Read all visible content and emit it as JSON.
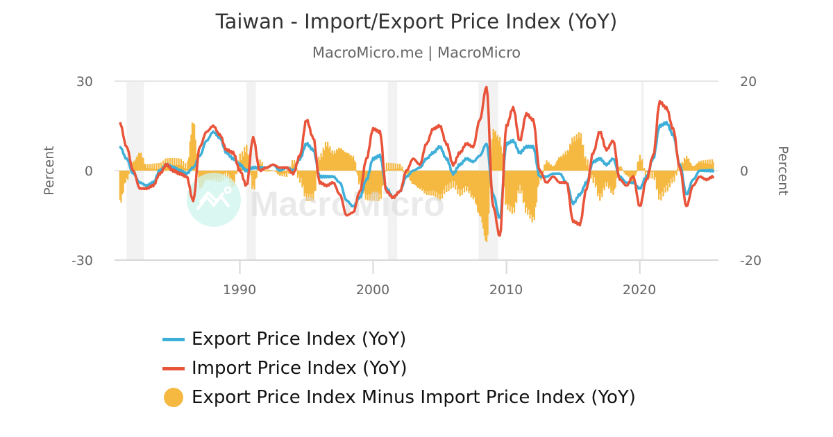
{
  "header": {
    "title": "Taiwan - Import/Export Price Index (YoY)",
    "subtitle": "MacroMicro.me | MacroMicro"
  },
  "watermark": {
    "text": "MacroMicro",
    "icon": "macromicro-logo-icon"
  },
  "axes": {
    "left": {
      "label": "Percent",
      "ticks": [
        "30",
        "0",
        "-30"
      ]
    },
    "right": {
      "label": "Percent",
      "ticks": [
        "20",
        "0",
        "-20"
      ]
    },
    "x": {
      "ticks": [
        "1990",
        "2000",
        "2010",
        "2020"
      ]
    }
  },
  "legend": [
    {
      "label": "Export Price Index (YoY)",
      "color": "#3EAFD8",
      "type": "line"
    },
    {
      "label": "Import Price Index (YoY)",
      "color": "#E8533A",
      "type": "line"
    },
    {
      "label": "Export Price Index Minus Import Price Index (YoY)",
      "color": "#F5B942",
      "type": "dot"
    }
  ],
  "colors": {
    "export": "#3EAFD8",
    "import": "#E8533A",
    "spread": "#F5B942",
    "recession": "#F2F2F2",
    "grid": "#E6E6E6"
  },
  "chart_data": {
    "type": "line",
    "title": "Taiwan - Import/Export Price Index (YoY)",
    "subtitle": "MacroMicro.me | MacroMicro",
    "xlabel": "",
    "ylabel_left": "Percent",
    "ylabel_right": "Percent",
    "ylim_left": [
      -30,
      30
    ],
    "ylim_right": [
      -20,
      20
    ],
    "xlim": [
      1980.6,
      2025.9
    ],
    "x_ticks": [
      1990,
      2000,
      2010,
      2020
    ],
    "grid": false,
    "legend_position": "bottom",
    "recessions": [
      [
        1981.5,
        1982.8
      ],
      [
        1990.5,
        1991.2
      ],
      [
        2001.1,
        2001.8
      ],
      [
        2007.9,
        2009.4
      ],
      [
        2020.1,
        2020.3
      ]
    ],
    "x": [
      1981.0,
      1981.5,
      1982.0,
      1982.5,
      1983.0,
      1983.5,
      1984.0,
      1984.5,
      1985.0,
      1985.5,
      1986.0,
      1986.5,
      1987.0,
      1987.5,
      1988.0,
      1988.5,
      1989.0,
      1989.5,
      1990.0,
      1990.5,
      1991.0,
      1991.5,
      1992.0,
      1992.5,
      1993.0,
      1993.5,
      1994.0,
      1994.5,
      1995.0,
      1995.5,
      1996.0,
      1996.5,
      1997.0,
      1997.5,
      1998.0,
      1998.5,
      1999.0,
      1999.5,
      2000.0,
      2000.5,
      2001.0,
      2001.5,
      2002.0,
      2002.5,
      2003.0,
      2003.5,
      2004.0,
      2004.5,
      2005.0,
      2005.5,
      2006.0,
      2006.5,
      2007.0,
      2007.5,
      2008.0,
      2008.5,
      2009.0,
      2009.5,
      2010.0,
      2010.5,
      2011.0,
      2011.5,
      2012.0,
      2012.5,
      2013.0,
      2013.5,
      2014.0,
      2014.5,
      2015.0,
      2015.5,
      2016.0,
      2016.5,
      2017.0,
      2017.5,
      2018.0,
      2018.5,
      2019.0,
      2019.5,
      2020.0,
      2020.5,
      2021.0,
      2021.5,
      2022.0,
      2022.5,
      2023.0,
      2023.5,
      2024.0,
      2024.5,
      2025.0,
      2025.5
    ],
    "series": [
      {
        "name": "Export Price Index (YoY)",
        "axis": "left",
        "color": "#3EAFD8",
        "values": [
          8,
          4,
          -1,
          -4,
          -5,
          -4,
          0,
          2,
          1,
          0,
          -1,
          1,
          5,
          10,
          13,
          11,
          6,
          4,
          2,
          0,
          1,
          1,
          1,
          2,
          0,
          1,
          0,
          4,
          9,
          7,
          -2,
          -2,
          -2,
          -4,
          -10,
          -12,
          -9,
          -3,
          4,
          5,
          -6,
          -9,
          -7,
          -2,
          0,
          1,
          4,
          6,
          8,
          4,
          -1,
          2,
          4,
          3,
          5,
          9,
          -8,
          -16,
          9,
          10,
          6,
          8,
          8,
          -2,
          -2,
          -1,
          -1,
          -4,
          -11,
          -8,
          -4,
          3,
          4,
          2,
          4,
          -2,
          -4,
          -4,
          -6,
          -2,
          4,
          15,
          16,
          12,
          2,
          -8,
          -3,
          0,
          0,
          0
        ]
      },
      {
        "name": "Import Price Index (YoY)",
        "axis": "left",
        "color": "#E8533A",
        "values": [
          16,
          8,
          0,
          -6,
          -6,
          -5,
          -1,
          2,
          0,
          -1,
          -2,
          -10,
          8,
          13,
          15,
          12,
          7,
          6,
          0,
          -5,
          11,
          0,
          1,
          2,
          1,
          1,
          -1,
          5,
          17,
          11,
          -4,
          -5,
          -4,
          -8,
          -15,
          -14,
          -7,
          4,
          14,
          13,
          -7,
          -9,
          -7,
          0,
          4,
          2,
          9,
          14,
          15,
          9,
          2,
          6,
          9,
          8,
          17,
          28,
          -12,
          -22,
          15,
          21,
          10,
          19,
          17,
          0,
          -4,
          -2,
          -4,
          -4,
          -17,
          -18,
          -6,
          6,
          13,
          7,
          10,
          -3,
          -5,
          -2,
          -12,
          -3,
          5,
          23,
          21,
          14,
          1,
          -12,
          -5,
          -2,
          -3,
          -2
        ]
      },
      {
        "name": "Export Price Index Minus Import Price Index (YoY)",
        "axis": "right",
        "type": "bar",
        "color": "#F5B942",
        "values": [
          -7,
          -2,
          2,
          4,
          1,
          1,
          1,
          2,
          2,
          2,
          1,
          11,
          -4,
          -2,
          -2,
          -2,
          -1,
          -3,
          3,
          5,
          -4,
          2,
          0,
          0,
          -1,
          -1,
          2,
          -2,
          -6,
          -6,
          3,
          6,
          4,
          5,
          4,
          3,
          -3,
          -6,
          -6,
          -6,
          1,
          1,
          1,
          -1,
          -3,
          -4,
          -5,
          -5,
          -6,
          -4,
          -3,
          -5,
          -4,
          -6,
          -10,
          -16,
          9,
          7,
          -8,
          -9,
          -4,
          -9,
          -11,
          -2,
          2,
          1,
          3,
          4,
          7,
          8,
          2,
          -2,
          -6,
          -3,
          -5,
          1,
          -1,
          -3,
          3,
          -1,
          -1,
          -6,
          -4,
          -2,
          1,
          3,
          1,
          2,
          2,
          2
        ]
      }
    ]
  }
}
